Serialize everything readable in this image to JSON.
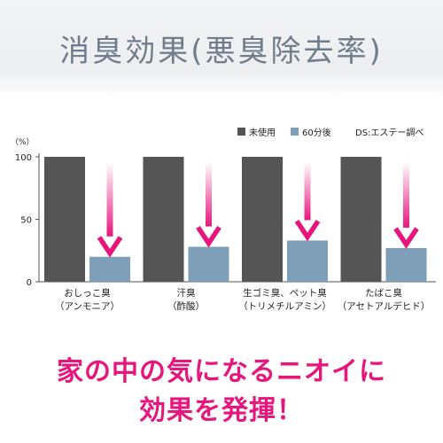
{
  "header": {
    "title": "消臭効果(悪臭除去率)"
  },
  "chart_data": {
    "type": "bar",
    "unit_label": "（%）",
    "yticks": [
      0,
      50,
      100
    ],
    "ylim": [
      0,
      100
    ],
    "grid": false,
    "legend_position": "top-right",
    "legend_note": "DS:エステー調べ",
    "categories": [
      [
        "おしっこ臭",
        "（アンモニア）"
      ],
      [
        "汗臭",
        "（酢酸）"
      ],
      [
        "生ゴミ臭、ペット臭",
        "（トリメチルアミン）"
      ],
      [
        "たばこ臭",
        "（アセトアルデヒド）"
      ]
    ],
    "series": [
      {
        "name": "未使用",
        "values": [
          100,
          100,
          100,
          100
        ],
        "color": "#555555"
      },
      {
        "name": "60分後",
        "values": [
          20,
          28,
          33,
          27
        ],
        "color": "#7e9fb7"
      }
    ],
    "arrow_color": "#e6167d"
  },
  "footer": {
    "line1": "家の中の気になるニオイに",
    "line2": "効果を発揮！"
  }
}
